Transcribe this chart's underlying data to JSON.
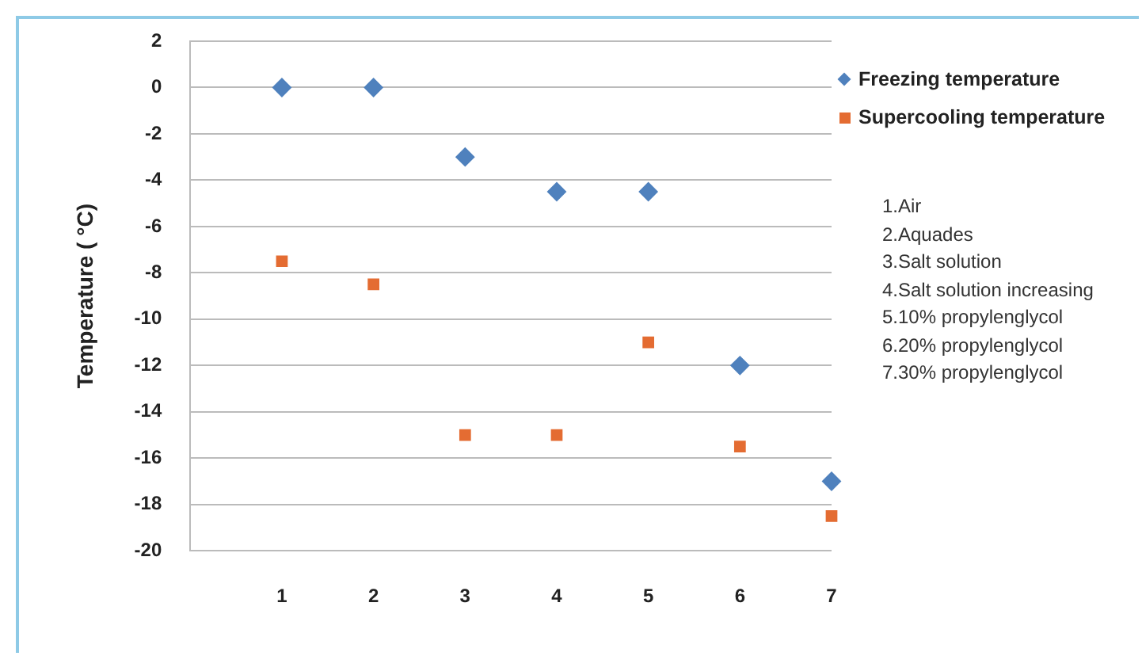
{
  "chart_data": {
    "type": "scatter",
    "ylabel": "Temperature ( °C)",
    "x": [
      1,
      2,
      3,
      4,
      5,
      6,
      7
    ],
    "series": [
      {
        "name": "Freezing temperature",
        "color": "#4f81bd",
        "marker": "diamond",
        "values": [
          0,
          0,
          -3,
          -4.5,
          -4.5,
          -12,
          -17
        ]
      },
      {
        "name": "Supercooling temperature",
        "color": "#e46c32",
        "marker": "square",
        "values": [
          -7.5,
          -8.5,
          -15,
          -15,
          -11,
          -15.5,
          -18.5
        ]
      }
    ],
    "xlim": [
      0,
      7
    ],
    "xticks": [
      1,
      2,
      3,
      4,
      5,
      6,
      7
    ],
    "ylim": [
      -20,
      2
    ],
    "yticks": [
      -20,
      -18,
      -16,
      -14,
      -12,
      -10,
      -8,
      -6,
      -4,
      -2,
      0,
      2
    ],
    "grid": "y",
    "legend": "top right",
    "annotations": [
      "1.Air",
      "2.Aquades",
      "3.Salt solution",
      "4.Salt solution increasing",
      "5.10% propylenglycol",
      "6.20% propylenglycol",
      "7.30% propylenglycol"
    ]
  }
}
